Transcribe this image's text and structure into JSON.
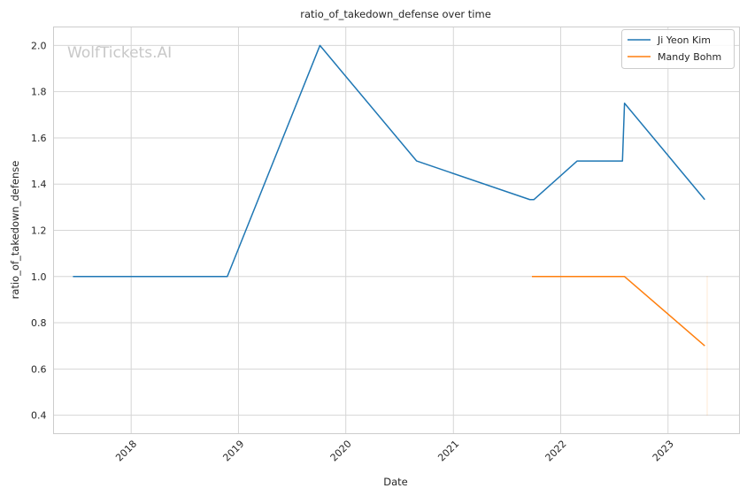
{
  "chart_data": {
    "type": "line",
    "title": "ratio_of_takedown_defense over time",
    "xlabel": "Date",
    "ylabel": "ratio_of_takedown_defense",
    "watermark": "WolfTickets.AI",
    "xlim": [
      "2017-04-12",
      "2023-09-01"
    ],
    "ylim": [
      0.32,
      2.08
    ],
    "x_ticks": [
      {
        "date": "2018-01-01",
        "label": "2018"
      },
      {
        "date": "2019-01-01",
        "label": "2019"
      },
      {
        "date": "2020-01-01",
        "label": "2020"
      },
      {
        "date": "2021-01-01",
        "label": "2021"
      },
      {
        "date": "2022-01-01",
        "label": "2022"
      },
      {
        "date": "2023-01-01",
        "label": "2023"
      }
    ],
    "y_ticks": [
      0.4,
      0.6,
      0.8,
      1.0,
      1.2,
      1.4,
      1.6,
      1.8,
      2.0
    ],
    "grid": true,
    "legend_position": "top-right",
    "series": [
      {
        "name": "Ji Yeon Kim",
        "color": "#1f77b4",
        "points": [
          {
            "x": "2017-06-17",
            "y": 1.0
          },
          {
            "x": "2018-11-24",
            "y": 1.0
          },
          {
            "x": "2019-10-05",
            "y": 2.0
          },
          {
            "x": "2020-08-29",
            "y": 1.5
          },
          {
            "x": "2021-09-18",
            "y": 1.333
          },
          {
            "x": "2021-10-02",
            "y": 1.333
          },
          {
            "x": "2022-02-26",
            "y": 1.5
          },
          {
            "x": "2022-07-30",
            "y": 1.5
          },
          {
            "x": "2022-08-06",
            "y": 1.75
          },
          {
            "x": "2023-05-06",
            "y": 1.333
          }
        ]
      },
      {
        "name": "Mandy Bohm",
        "color": "#ff7f0e",
        "points": [
          {
            "x": "2021-09-25",
            "y": 1.0
          },
          {
            "x": "2022-08-06",
            "y": 1.0
          },
          {
            "x": "2023-05-06",
            "y": 0.7
          }
        ]
      }
    ]
  }
}
